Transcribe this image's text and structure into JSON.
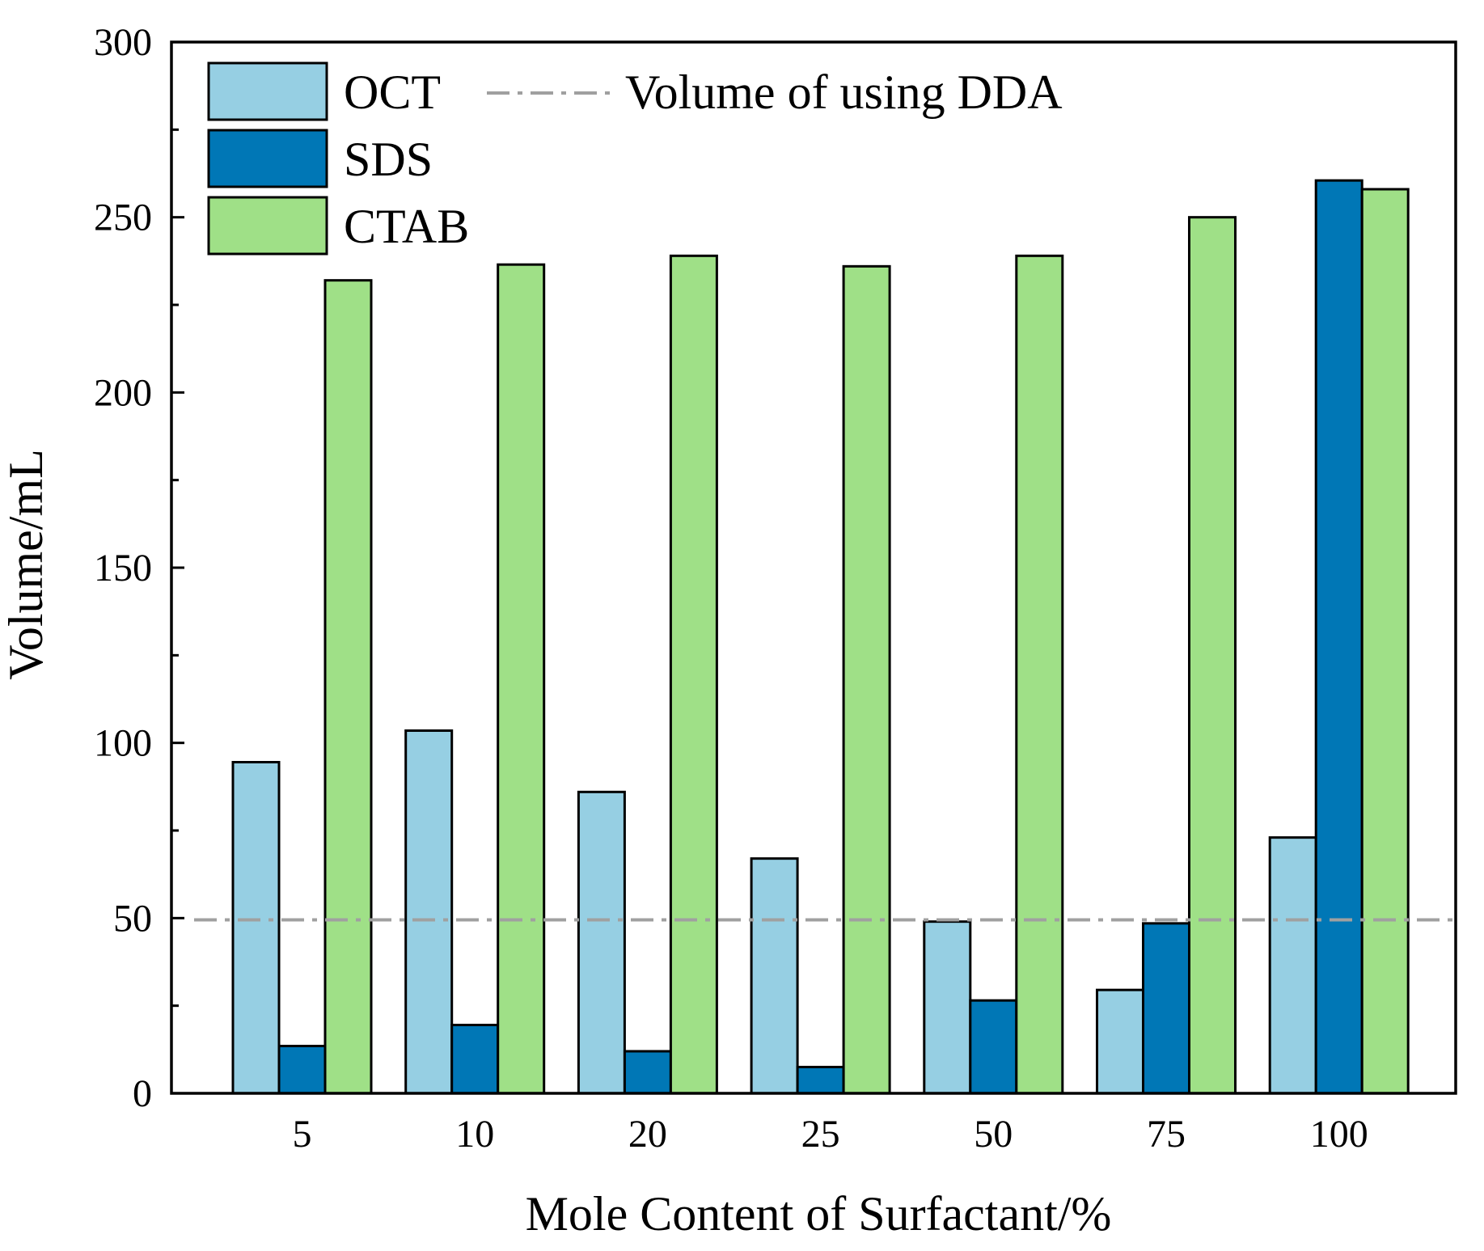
{
  "chart_data": {
    "type": "bar",
    "title": "",
    "xlabel": "Mole Content of Surfactant/%",
    "ylabel": "Volume/mL",
    "categories": [
      "5",
      "10",
      "20",
      "25",
      "50",
      "75",
      "100"
    ],
    "ylim": [
      0,
      300
    ],
    "yticks": [
      0,
      50,
      100,
      150,
      200,
      250,
      300
    ],
    "series": [
      {
        "name": "OCT",
        "color": "#96cfe3",
        "values": [
          94.5,
          103.5,
          86,
          67,
          49,
          29.5,
          73
        ]
      },
      {
        "name": "SDS",
        "color": "#0077b6",
        "values": [
          13.5,
          19.5,
          12,
          7.5,
          26.5,
          48.5,
          260.5
        ]
      },
      {
        "name": "CTAB",
        "color": "#9fe087",
        "values": [
          232,
          236.5,
          239,
          236,
          239,
          250,
          258
        ]
      }
    ],
    "reference_line": {
      "name": "Volume of using DDA",
      "value": 49.5,
      "color": "#a0a0a0",
      "style": "dash-dot"
    },
    "legend_position": "top-left"
  }
}
